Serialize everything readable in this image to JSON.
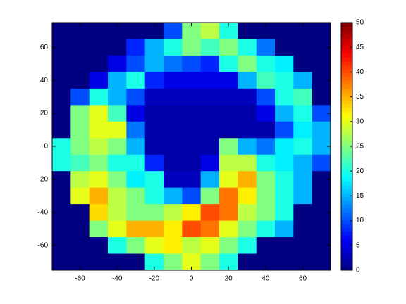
{
  "chart_data": {
    "type": "heatmap",
    "colormap": "jet",
    "x": [
      -70,
      -60,
      -50,
      -40,
      -30,
      -20,
      -10,
      0,
      10,
      20,
      30,
      40,
      50,
      60,
      70
    ],
    "y": [
      70,
      60,
      50,
      40,
      30,
      20,
      10,
      0,
      -10,
      -20,
      -30,
      -40,
      -50,
      -60,
      -70
    ],
    "z": [
      [
        0,
        0,
        0,
        0,
        0,
        0,
        10,
        25,
        28,
        20,
        0,
        0,
        0,
        0,
        0
      ],
      [
        0,
        0,
        0,
        0,
        8,
        15,
        20,
        25,
        22,
        25,
        20,
        12,
        0,
        0,
        0
      ],
      [
        0,
        0,
        0,
        5,
        10,
        15,
        12,
        10,
        8,
        20,
        25,
        20,
        18,
        0,
        0
      ],
      [
        0,
        0,
        5,
        15,
        20,
        8,
        5,
        5,
        5,
        5,
        15,
        22,
        20,
        15,
        0
      ],
      [
        0,
        10,
        20,
        15,
        10,
        3,
        3,
        3,
        3,
        3,
        3,
        10,
        20,
        22,
        0
      ],
      [
        0,
        25,
        30,
        22,
        5,
        2,
        2,
        2,
        2,
        2,
        2,
        5,
        15,
        20,
        10
      ],
      [
        0,
        25,
        30,
        30,
        12,
        2,
        2,
        2,
        2,
        2,
        2,
        2,
        10,
        18,
        15
      ],
      [
        20,
        25,
        28,
        25,
        15,
        2,
        2,
        2,
        2,
        25,
        15,
        12,
        18,
        20,
        15
      ],
      [
        20,
        22,
        25,
        20,
        20,
        8,
        2,
        2,
        5,
        28,
        28,
        20,
        18,
        15,
        10
      ],
      [
        0,
        28,
        30,
        25,
        18,
        20,
        3,
        3,
        15,
        30,
        35,
        25,
        20,
        15,
        0
      ],
      [
        0,
        30,
        35,
        28,
        25,
        20,
        15,
        10,
        25,
        38,
        32,
        25,
        20,
        15,
        0
      ],
      [
        0,
        0,
        33,
        28,
        25,
        25,
        28,
        32,
        40,
        38,
        28,
        25,
        20,
        0,
        0
      ],
      [
        0,
        0,
        25,
        30,
        35,
        35,
        32,
        40,
        38,
        30,
        25,
        20,
        15,
        0,
        0
      ],
      [
        0,
        0,
        0,
        20,
        25,
        30,
        32,
        28,
        30,
        25,
        20,
        0,
        0,
        0,
        0
      ],
      [
        0,
        0,
        0,
        0,
        0,
        20,
        25,
        30,
        25,
        20,
        0,
        0,
        0,
        0,
        0
      ]
    ],
    "xlim": [
      -75,
      75
    ],
    "ylim": [
      -75,
      75
    ],
    "xticks": [
      -60,
      -40,
      -20,
      0,
      20,
      40,
      60
    ],
    "yticks": [
      -60,
      -40,
      -20,
      0,
      20,
      40,
      60
    ],
    "clim": [
      0,
      50
    ],
    "cticks": [
      0,
      5,
      10,
      15,
      20,
      25,
      30,
      35,
      40,
      45,
      50
    ]
  }
}
